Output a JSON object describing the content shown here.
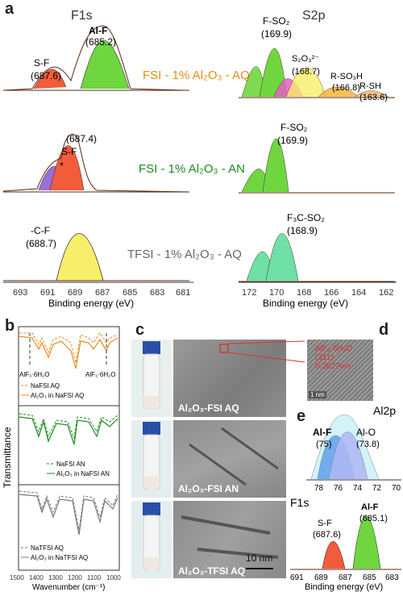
{
  "panel_a": {
    "letter": "a",
    "f1s_header": "F1s",
    "s2p_header": "S2p",
    "row_labels": [
      "FSI - 1% Al₂O₃ - AQ",
      "FSI - 1% Al₂O₃ - AN",
      "TFSI - 1% Al₂O₃ - AQ"
    ],
    "f1s_peaks": [
      {
        "name": "S-F",
        "value": "(687.6)"
      },
      {
        "name": "Al-F",
        "value": "(685.2)"
      },
      {
        "name": "S-F",
        "value": "(687.4)"
      },
      {
        "name": "*",
        "value": ""
      },
      {
        "name": "-C-F",
        "value": "(688.7)"
      }
    ],
    "s2p_peaks": [
      {
        "name": "F-SO₂",
        "value": "(169.9)"
      },
      {
        "name": "S₂O₃²⁻",
        "value": "(168.7)"
      },
      {
        "name": "R-SO₃H",
        "value": "(166.8)"
      },
      {
        "name": "R-SH",
        "value": "(163.6)"
      },
      {
        "name": "F-SO₂",
        "value": "(169.9)"
      },
      {
        "name": "F₃C-SO₂",
        "value": "(168.9)"
      }
    ],
    "f1s_ticks": [
      "693",
      "691",
      "689",
      "687",
      "685",
      "683",
      "681"
    ],
    "s2p_ticks": [
      "172",
      "170",
      "168",
      "166",
      "164",
      "162"
    ],
    "xlabel": "Binding energy (eV)"
  },
  "panel_b": {
    "letter": "b",
    "ylabel": "Transmittance",
    "xlabel": "Wavenumber (cm⁻¹)",
    "ticks": [
      "1500",
      "1400",
      "1300",
      "1200",
      "1100",
      "1000"
    ],
    "annotations": [
      "AlF₃·6H₂O",
      "AlF₃·6H₂O"
    ],
    "legends": [
      {
        "dashed": "NaFSI AQ",
        "solid": "Al₂O₃ in NaFSI AQ",
        "color": "#e88a17"
      },
      {
        "dashed": "NaFSI AN",
        "solid": "Al₂O₃ in NaFSI AN",
        "color": "#1a8a1a"
      },
      {
        "dashed": "NaTFSI AQ",
        "solid": "Al₂O₃ in NaTFSI AQ",
        "color": "#777777"
      }
    ]
  },
  "panel_c": {
    "letter": "c",
    "images": [
      "Al₂O₃-FSI AQ",
      "Al₂O₃-FSI AN",
      "Al₂O₃-TFSI AQ"
    ],
    "scale": "10 nm"
  },
  "panel_d": {
    "letter": "d",
    "lines": [
      "AlF₃ 6H₂O",
      "(311)",
      "0.2627nm"
    ],
    "scale": "1 nm"
  },
  "panel_e": {
    "letter": "e",
    "al2p_title": "Al2p",
    "al2p_peaks": [
      {
        "name": "Al-F",
        "value": "(75)"
      },
      {
        "name": "Al-O",
        "value": "(73.8)"
      }
    ],
    "al2p_ticks": [
      "78",
      "76",
      "74",
      "72",
      "70"
    ],
    "f1s_title": "F1s",
    "f1s_peaks": [
      {
        "name": "S-F",
        "value": "(687.6)"
      },
      {
        "name": "Al-F",
        "value": "(685.1)"
      }
    ],
    "f1s_ticks": [
      "691",
      "689",
      "687",
      "685",
      "683"
    ],
    "xlabel": "Binding energy (eV)"
  },
  "colors": {
    "orange": "#e88a17",
    "green": "#1a8a1a",
    "gray": "#777777",
    "peak_red": "#f25c3b",
    "peak_green": "#6fd63f",
    "peak_yellow": "#f7ee6a",
    "peak_purple": "#9a6fd6",
    "peak_blue": "#3d73e8"
  }
}
